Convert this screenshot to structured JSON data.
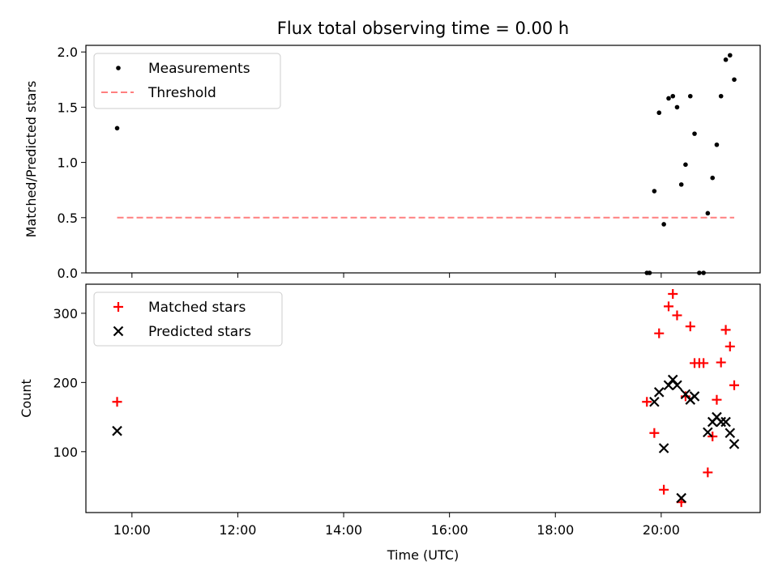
{
  "chart_data": [
    {
      "type": "scatter",
      "title": "Flux total observing time = 0.00 h",
      "xlabel": "",
      "ylabel": "Matched/Predicted stars",
      "xlim": [
        9.13,
        21.87
      ],
      "ylim": [
        0.0,
        2.06
      ],
      "xticks": [
        10,
        12,
        14,
        16,
        18,
        20
      ],
      "xtick_labels": [
        "10:00",
        "12:00",
        "14:00",
        "16:00",
        "18:00",
        "20:00"
      ],
      "yticks": [
        0.0,
        0.5,
        1.0,
        1.5,
        2.0
      ],
      "ytick_labels": [
        "0.0",
        "0.5",
        "1.0",
        "1.5",
        "2.0"
      ],
      "legend_position": "upper-left",
      "series": [
        {
          "name": "Measurements",
          "kind": "dots",
          "color": "#000000",
          "x": [
            9.72,
            19.73,
            19.78,
            19.87,
            19.96,
            20.05,
            20.14,
            20.22,
            20.3,
            20.38,
            20.46,
            20.55,
            20.63,
            20.72,
            20.8,
            20.88,
            20.97,
            21.05,
            21.13,
            21.22,
            21.3,
            21.38
          ],
          "y": [
            1.31,
            0.0,
            0.0,
            0.74,
            1.45,
            0.44,
            1.58,
            1.6,
            1.5,
            0.8,
            0.98,
            1.6,
            1.26,
            0.0,
            0.0,
            0.54,
            0.86,
            1.16,
            1.6,
            1.93,
            1.97,
            1.75
          ]
        },
        {
          "name": "Threshold",
          "kind": "dashed-line",
          "color": "#ff7f7f",
          "x": [
            9.72,
            21.38
          ],
          "y": [
            0.5,
            0.5
          ]
        }
      ]
    },
    {
      "type": "scatter",
      "title": "",
      "xlabel": "Time (UTC)",
      "ylabel": "Count",
      "xlim": [
        9.13,
        21.87
      ],
      "ylim": [
        12,
        342
      ],
      "xticks": [
        10,
        12,
        14,
        16,
        18,
        20
      ],
      "xtick_labels": [
        "10:00",
        "12:00",
        "14:00",
        "16:00",
        "18:00",
        "20:00"
      ],
      "yticks": [
        100,
        200,
        300
      ],
      "ytick_labels": [
        "100",
        "200",
        "300"
      ],
      "legend_position": "upper-left",
      "series": [
        {
          "name": "Matched stars",
          "kind": "plus",
          "color": "#ff0000",
          "x": [
            9.72,
            19.73,
            19.87,
            19.96,
            20.05,
            20.14,
            20.22,
            20.3,
            20.38,
            20.46,
            20.55,
            20.63,
            20.72,
            20.8,
            20.88,
            20.97,
            21.05,
            21.13,
            21.22,
            21.3,
            21.38
          ],
          "y": [
            172,
            172,
            127,
            271,
            45,
            310,
            328,
            297,
            27,
            180,
            281,
            228,
            228,
            228,
            70,
            122,
            175,
            229,
            276,
            252,
            196
          ]
        },
        {
          "name": "Predicted stars",
          "kind": "cross",
          "color": "#000000",
          "x": [
            9.72,
            19.87,
            19.96,
            20.05,
            20.14,
            20.22,
            20.3,
            20.38,
            20.46,
            20.55,
            20.63,
            20.88,
            20.97,
            21.05,
            21.13,
            21.22,
            21.3,
            21.38
          ],
          "y": [
            130,
            172,
            186,
            105,
            196,
            204,
            196,
            33,
            183,
            175,
            180,
            128,
            143,
            150,
            143,
            143,
            127,
            111
          ]
        }
      ]
    }
  ]
}
